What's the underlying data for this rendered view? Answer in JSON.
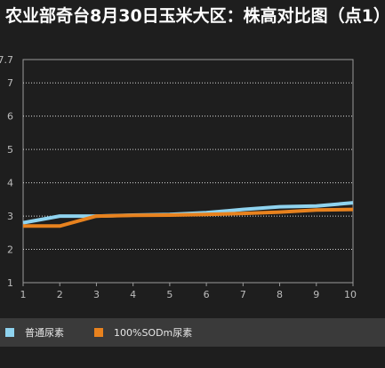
{
  "title": "农业部奇台8月30日玉米大区：株高对比图（点1）",
  "chart_data": {
    "type": "line",
    "title": "农业部奇台8月30日玉米大区：株高对比图（点1）",
    "x": [
      1,
      2,
      3,
      4,
      5,
      6,
      7,
      8,
      9,
      10
    ],
    "x_tick_labels": [
      "1",
      "2",
      "3",
      "4",
      "5",
      "6",
      "7",
      "8",
      "9",
      "10"
    ],
    "y_tick_labels": [
      "1",
      "2",
      "3",
      "4",
      "5",
      "6",
      "7",
      "7.7"
    ],
    "ylim": [
      1,
      7.7
    ],
    "xlim": [
      1,
      10
    ],
    "grid": "horizontal dotted",
    "legend_position": "bottom",
    "series": [
      {
        "name": "普通尿素",
        "color": "#8fd3ef",
        "values": [
          2.8,
          3.0,
          3.0,
          3.03,
          3.05,
          3.1,
          3.2,
          3.28,
          3.3,
          3.4
        ]
      },
      {
        "name": "100%SODm尿素",
        "color": "#e8821e",
        "values": [
          2.7,
          2.7,
          3.0,
          3.02,
          3.03,
          3.05,
          3.08,
          3.12,
          3.18,
          3.2
        ]
      }
    ]
  }
}
